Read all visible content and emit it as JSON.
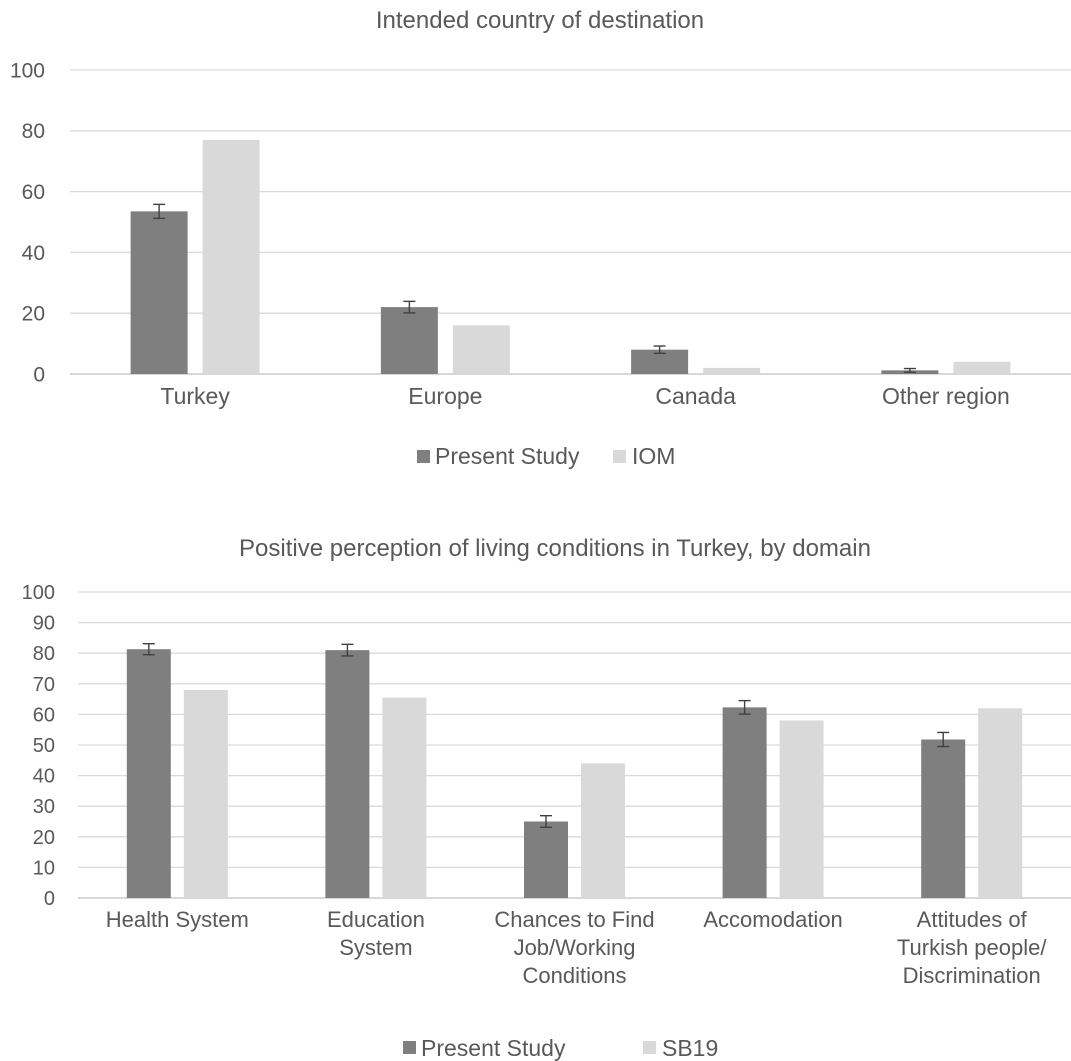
{
  "chart_data": [
    {
      "type": "bar",
      "title": "Intended country of destination",
      "xlabel": "",
      "ylabel": "",
      "categories": [
        "Turkey",
        "Europe",
        "Canada",
        "Other region"
      ],
      "series": [
        {
          "name": "Present Study",
          "values": [
            53.5,
            22,
            8,
            1.2
          ],
          "error": [
            2.3,
            1.9,
            1.2,
            0.6
          ],
          "color": "#7f7f7f"
        },
        {
          "name": "IOM",
          "values": [
            77,
            16,
            2,
            4
          ],
          "color": "#d9d9d9"
        }
      ],
      "ylim": [
        0,
        100
      ],
      "yticks": [
        "0",
        "20",
        "40",
        "60",
        "80",
        "100"
      ],
      "grid": true,
      "legend": "bottom"
    },
    {
      "type": "bar",
      "title": "Positive perception of living conditions in Turkey, by domain",
      "xlabel": "",
      "ylabel": "",
      "categories": [
        [
          "Health System"
        ],
        [
          "Education",
          "System"
        ],
        [
          "Chances to Find",
          "Job/Working",
          "Conditions"
        ],
        [
          "Accomodation"
        ],
        [
          "Attitudes of",
          "Turkish people/",
          "Discrimination"
        ]
      ],
      "series": [
        {
          "name": "Present Study",
          "values": [
            81.3,
            81,
            25,
            62.3,
            51.8
          ],
          "error": [
            1.8,
            1.9,
            1.9,
            2.2,
            2.3
          ],
          "color": "#7f7f7f"
        },
        {
          "name": "SB19",
          "values": [
            68,
            65.5,
            44,
            58,
            62
          ],
          "color": "#d9d9d9"
        }
      ],
      "ylim": [
        0,
        100
      ],
      "yticks": [
        "0",
        "10",
        "20",
        "30",
        "40",
        "50",
        "60",
        "70",
        "80",
        "90",
        "100"
      ],
      "grid": true,
      "legend": "bottom"
    }
  ]
}
